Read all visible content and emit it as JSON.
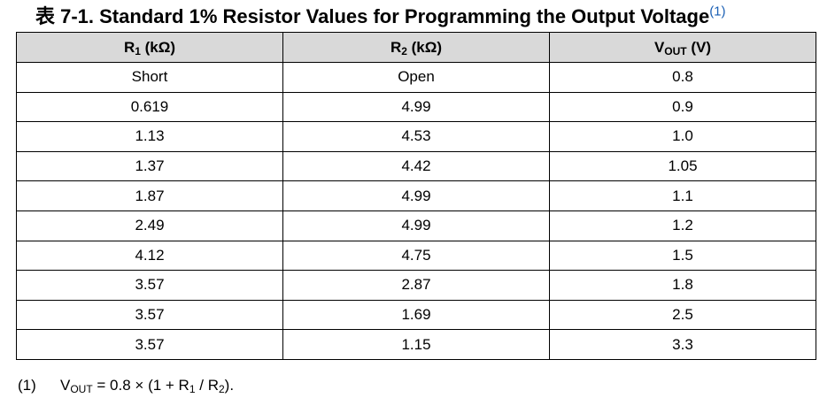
{
  "title": {
    "text": "表 7-1. Standard 1% Resistor Values for Programming the Output Voltage",
    "ref": "(1)"
  },
  "table": {
    "headers": [
      {
        "main": "R",
        "sub": "1",
        "rest": " (kΩ)"
      },
      {
        "main": "R",
        "sub": "2",
        "rest": " (kΩ)"
      },
      {
        "main": "V",
        "sub": "OUT",
        "rest": " (V)"
      }
    ],
    "rows": [
      [
        "Short",
        "Open",
        "0.8"
      ],
      [
        "0.619",
        "4.99",
        "0.9"
      ],
      [
        "1.13",
        "4.53",
        "1.0"
      ],
      [
        "1.37",
        "4.42",
        "1.05"
      ],
      [
        "1.87",
        "4.99",
        "1.1"
      ],
      [
        "2.49",
        "4.99",
        "1.2"
      ],
      [
        "4.12",
        "4.75",
        "1.5"
      ],
      [
        "3.57",
        "2.87",
        "1.8"
      ],
      [
        "3.57",
        "1.69",
        "2.5"
      ],
      [
        "3.57",
        "1.15",
        "3.3"
      ]
    ]
  },
  "footnote": {
    "mark": "(1)",
    "parts": [
      "V",
      "OUT",
      " = 0.8 × (1 + R",
      "1",
      " / R",
      "2",
      ")."
    ]
  }
}
